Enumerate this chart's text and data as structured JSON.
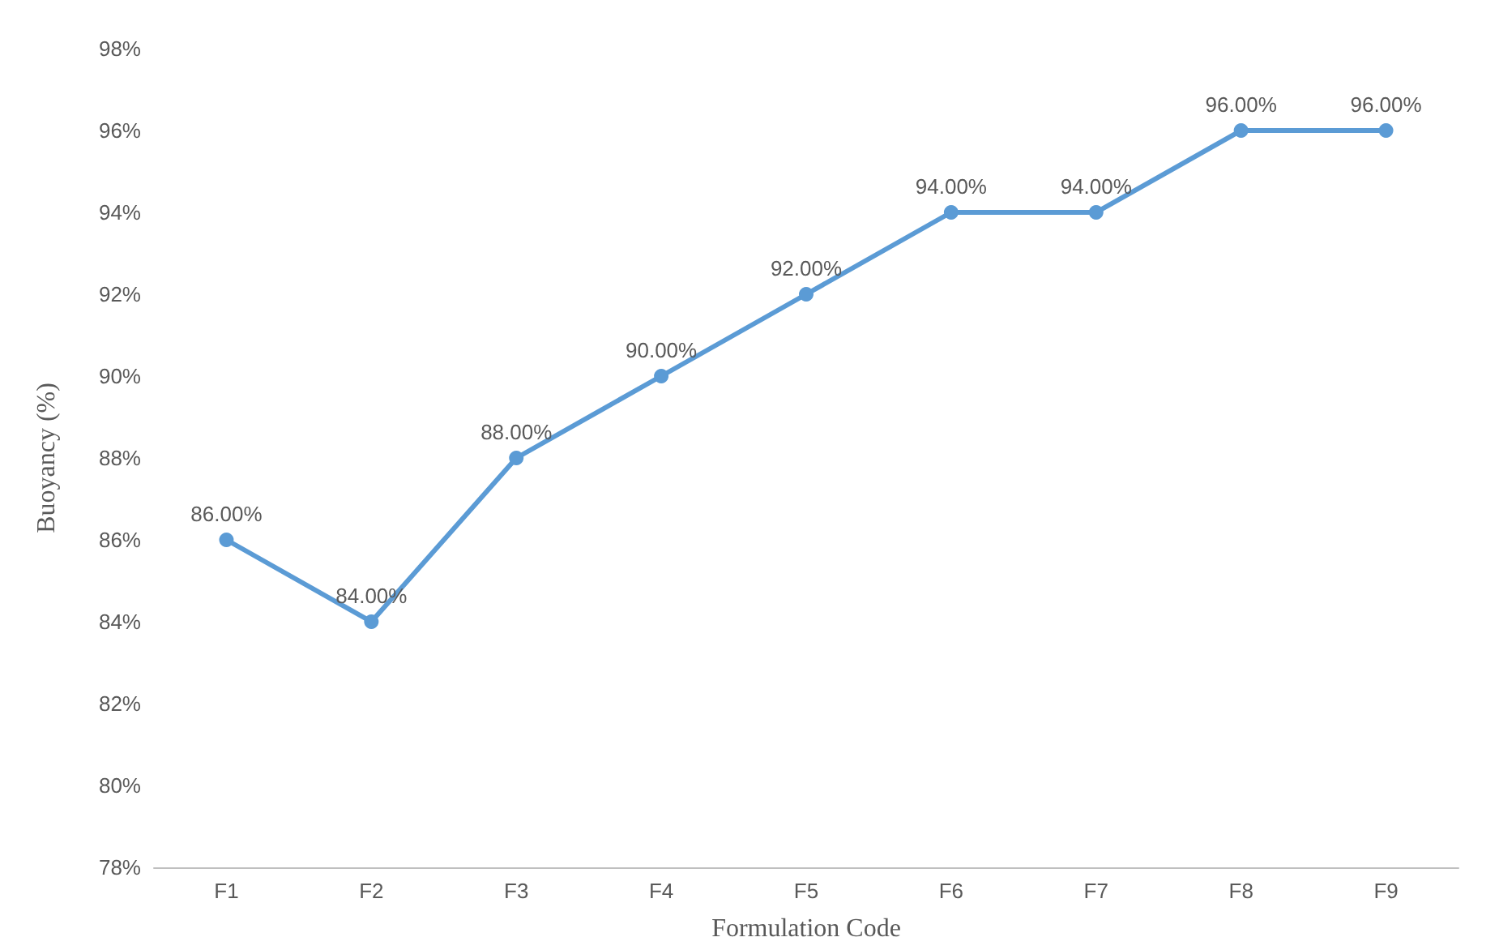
{
  "chart_data": {
    "type": "line",
    "xlabel": "Formulation Code",
    "ylabel": "Buoyancy (%)",
    "categories": [
      "F1",
      "F2",
      "F3",
      "F4",
      "F5",
      "F6",
      "F7",
      "F8",
      "F9"
    ],
    "series": [
      {
        "color": "#5b9bd5",
        "values": [
          86,
          84,
          88,
          90,
          92,
          94,
          94,
          96,
          96
        ],
        "value_labels": [
          "86.00%",
          "84.00%",
          "88.00%",
          "90.00%",
          "92.00%",
          "94.00%",
          "94.00%",
          "96.00%",
          "96.00%"
        ]
      }
    ],
    "ylim": [
      78,
      98
    ],
    "yticks": [
      {
        "value": 78,
        "label": "78%"
      },
      {
        "value": 80,
        "label": "80%"
      },
      {
        "value": 82,
        "label": "82%"
      },
      {
        "value": 84,
        "label": "84%"
      },
      {
        "value": 86,
        "label": "86%"
      },
      {
        "value": 88,
        "label": "88%"
      },
      {
        "value": 90,
        "label": "90%"
      },
      {
        "value": 92,
        "label": "92%"
      },
      {
        "value": 94,
        "label": "94%"
      },
      {
        "value": 96,
        "label": "96%"
      },
      {
        "value": 98,
        "label": "98%"
      }
    ],
    "grid": false,
    "marker": "circle",
    "line_style": "solid"
  }
}
